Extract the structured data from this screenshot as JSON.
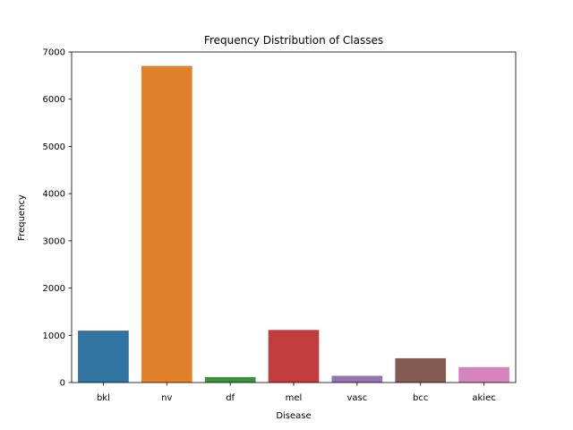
{
  "chart_data": {
    "type": "bar",
    "title": "Frequency Distribution of Classes",
    "xlabel": "Disease",
    "ylabel": "Frequency",
    "categories": [
      "bkl",
      "nv",
      "df",
      "mel",
      "vasc",
      "bcc",
      "akiec"
    ],
    "values": [
      1099,
      6705,
      115,
      1113,
      142,
      514,
      327
    ],
    "colors": [
      "#3274a1",
      "#e1812c",
      "#3a923a",
      "#c03d3e",
      "#9372b2",
      "#845b53",
      "#d684bd"
    ],
    "ylim": [
      0,
      7000
    ],
    "yticks": [
      0,
      1000,
      2000,
      3000,
      4000,
      5000,
      6000,
      7000
    ],
    "grid": false,
    "legend": "none"
  }
}
